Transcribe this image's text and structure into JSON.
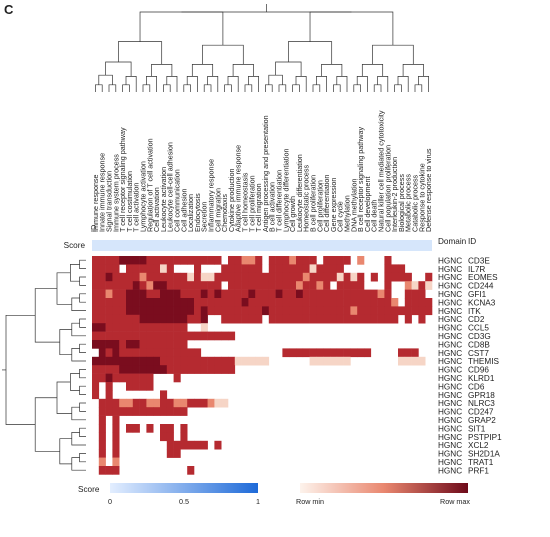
{
  "panel_label": "C",
  "chart_data": {
    "type": "heatmap",
    "id_column_header": "ID",
    "score_row_label": "Score",
    "domain_header": "Domain",
    "row_id_header": "ID",
    "domain_value": "HGNC",
    "columns": [
      "Immune response",
      "Innate immune response",
      "Signal transduction",
      "Immune system process",
      "T cell receptor signaling pathway",
      "T cell costimulation",
      "T cell activation",
      "Lymphocyte activation",
      "Regulation of T cell activation",
      "Cell activation",
      "Leukocyte activation",
      "Leukocyte cell-cell adhesion",
      "Cell communication",
      "Cell adhesion",
      "Localization",
      "Endocytosis",
      "Secretion",
      "Inflammatory response",
      "Cell migration",
      "Chemotaxis",
      "Cytokine production",
      "Adaptive immune response",
      "T cell homeostasis",
      "T cell proliferation",
      "T cell migration",
      "Antigen processing and presentation",
      "B cell activation",
      "T cell differentiation",
      "Lymphocyte differentiation",
      "Cell growth",
      "Leukocyte differentiation",
      "Homeostatic process",
      "B cell proliferation",
      "Cell proliferation",
      "Cell differentiation",
      "Gene expression",
      "Cell cycle",
      "Methylation",
      "DNA methylation",
      "B cell receptor signaling pathway",
      "Cell development",
      "Cell death",
      "Natural killer cell mediated cytotoxicity",
      "Cell population proliferation",
      "Interleukin-2 production",
      "Biological process",
      "Metabolic process",
      "Catabolic process",
      "Response to cytokine",
      "Defense response to virus"
    ],
    "rows": [
      "CD3E",
      "IL7R",
      "EOMES",
      "CD244",
      "GFI1",
      "KCNA3",
      "ITK",
      "CD2",
      "CCL5",
      "CD3G",
      "CD8B",
      "CST7",
      "THEMIS",
      "CD96",
      "KLRD1",
      "CD6",
      "GPR18",
      "NLRC3",
      "CD247",
      "GRAP2",
      "SIT1",
      "PSTPIP1",
      "XCL2",
      "SH2D1A",
      "TRAT1",
      "PRF1"
    ],
    "scale_min": 0,
    "scale_max": 4,
    "score_legend": {
      "title": "Score",
      "ticks": [
        "0",
        "0.5",
        "1"
      ],
      "color_low": "#e3eeff",
      "color_high": "#1e6ad8"
    },
    "row_legend": {
      "min_label": "Row min",
      "max_label": "Row max",
      "color_low": "#fdf3ec",
      "color_high": "#6e0a1a"
    },
    "row_dendrogram": true,
    "column_dendrogram": true,
    "values": [
      [
        3,
        3,
        3,
        3,
        4,
        4,
        4,
        4,
        3,
        3,
        3,
        3,
        3,
        3,
        3,
        3,
        3,
        3,
        3,
        0,
        3,
        3,
        2,
        2,
        3,
        0,
        3,
        3,
        3,
        2,
        3,
        3,
        3,
        0,
        3,
        3,
        3,
        3,
        0,
        2,
        0,
        0,
        0,
        3,
        0,
        0,
        0,
        0,
        0,
        0
      ],
      [
        3,
        3,
        3,
        3,
        0,
        3,
        3,
        3,
        3,
        3,
        1,
        3,
        0,
        0,
        0,
        3,
        0,
        0,
        0,
        3,
        3,
        3,
        3,
        3,
        3,
        0,
        3,
        3,
        3,
        3,
        3,
        3,
        1,
        3,
        3,
        3,
        3,
        0,
        0,
        0,
        0,
        0,
        0,
        3,
        3,
        3,
        0,
        0,
        0,
        0
      ],
      [
        3,
        3,
        4,
        3,
        3,
        3,
        3,
        2,
        3,
        3,
        3,
        3,
        3,
        3,
        1,
        3,
        1,
        1,
        3,
        3,
        3,
        3,
        3,
        3,
        3,
        3,
        3,
        3,
        3,
        3,
        3,
        2,
        3,
        3,
        3,
        3,
        1,
        3,
        1,
        3,
        0,
        3,
        0,
        3,
        3,
        3,
        3,
        0,
        0,
        3
      ],
      [
        3,
        3,
        3,
        3,
        3,
        3,
        4,
        3,
        2,
        4,
        4,
        3,
        3,
        3,
        3,
        3,
        3,
        3,
        3,
        0,
        3,
        3,
        3,
        3,
        3,
        3,
        3,
        3,
        3,
        3,
        2,
        3,
        3,
        2,
        3,
        0,
        3,
        3,
        3,
        3,
        0,
        0,
        0,
        3,
        0,
        0,
        2,
        1,
        3,
        1
      ],
      [
        3,
        3,
        2,
        3,
        3,
        4,
        4,
        4,
        3,
        3,
        4,
        4,
        4,
        3,
        3,
        3,
        4,
        3,
        4,
        3,
        3,
        3,
        3,
        4,
        3,
        3,
        3,
        4,
        3,
        3,
        4,
        3,
        3,
        3,
        3,
        3,
        3,
        3,
        3,
        3,
        3,
        3,
        2,
        3,
        0,
        0,
        3,
        3,
        3,
        0
      ],
      [
        3,
        3,
        3,
        3,
        3,
        4,
        4,
        4,
        4,
        4,
        4,
        4,
        4,
        4,
        4,
        3,
        3,
        3,
        3,
        3,
        3,
        3,
        4,
        3,
        3,
        3,
        3,
        3,
        3,
        3,
        3,
        3,
        3,
        3,
        3,
        3,
        3,
        3,
        3,
        3,
        3,
        3,
        3,
        3,
        2,
        0,
        3,
        3,
        3,
        3
      ],
      [
        3,
        3,
        3,
        3,
        3,
        4,
        4,
        4,
        4,
        4,
        4,
        4,
        4,
        4,
        4,
        3,
        4,
        3,
        3,
        3,
        3,
        3,
        3,
        3,
        3,
        4,
        3,
        3,
        3,
        3,
        3,
        3,
        3,
        3,
        3,
        3,
        3,
        3,
        2,
        3,
        3,
        3,
        3,
        3,
        3,
        3,
        3,
        3,
        3,
        3
      ],
      [
        3,
        3,
        3,
        3,
        3,
        3,
        3,
        4,
        4,
        4,
        4,
        4,
        4,
        4,
        3,
        3,
        4,
        0,
        0,
        3,
        3,
        3,
        3,
        3,
        3,
        0,
        3,
        3,
        3,
        3,
        3,
        3,
        3,
        3,
        3,
        3,
        3,
        3,
        3,
        3,
        3,
        3,
        3,
        3,
        3,
        0,
        3,
        0,
        3,
        0
      ],
      [
        4,
        4,
        3,
        3,
        3,
        3,
        3,
        3,
        3,
        3,
        3,
        3,
        3,
        3,
        0,
        0,
        1,
        0,
        0,
        0,
        0,
        0,
        0,
        0,
        0,
        0,
        0,
        0,
        0,
        0,
        0,
        0,
        0,
        0,
        0,
        0,
        0,
        0,
        0,
        0,
        0,
        0,
        0,
        0,
        0,
        0,
        0,
        0,
        0,
        0
      ],
      [
        3,
        3,
        3,
        3,
        3,
        3,
        3,
        3,
        3,
        3,
        3,
        3,
        3,
        3,
        3,
        3,
        3,
        3,
        3,
        3,
        3,
        0,
        0,
        0,
        0,
        0,
        0,
        0,
        0,
        0,
        0,
        0,
        0,
        0,
        0,
        0,
        0,
        0,
        0,
        0,
        0,
        0,
        0,
        0,
        0,
        0,
        0,
        0,
        0,
        0
      ],
      [
        4,
        4,
        4,
        4,
        3,
        4,
        4,
        3,
        3,
        3,
        3,
        3,
        3,
        3,
        0,
        0,
        0,
        0,
        0,
        0,
        0,
        0,
        0,
        0,
        0,
        0,
        0,
        0,
        0,
        0,
        0,
        0,
        0,
        0,
        0,
        0,
        0,
        0,
        0,
        0,
        0,
        0,
        0,
        0,
        0,
        0,
        0,
        0,
        0,
        0
      ],
      [
        0,
        4,
        3,
        4,
        3,
        3,
        3,
        3,
        3,
        3,
        3,
        3,
        3,
        3,
        3,
        3,
        0,
        0,
        0,
        0,
        0,
        0,
        0,
        0,
        0,
        0,
        0,
        0,
        3,
        3,
        3,
        3,
        3,
        3,
        3,
        3,
        3,
        3,
        3,
        3,
        3,
        0,
        0,
        0,
        0,
        3,
        3,
        3,
        0,
        0
      ],
      [
        4,
        4,
        4,
        4,
        4,
        4,
        4,
        4,
        4,
        4,
        3,
        3,
        3,
        3,
        3,
        3,
        3,
        3,
        3,
        3,
        3,
        1,
        1,
        1,
        1,
        1,
        0,
        0,
        0,
        0,
        0,
        0,
        1,
        1,
        1,
        1,
        1,
        1,
        0,
        0,
        0,
        0,
        0,
        0,
        0,
        1,
        1,
        1,
        1,
        0
      ],
      [
        3,
        3,
        3,
        3,
        4,
        4,
        4,
        4,
        4,
        4,
        4,
        3,
        3,
        3,
        3,
        3,
        3,
        3,
        3,
        3,
        3,
        0,
        0,
        0,
        0,
        0,
        0,
        0,
        0,
        0,
        0,
        0,
        0,
        0,
        0,
        0,
        0,
        0,
        0,
        0,
        0,
        0,
        0,
        0,
        0,
        0,
        0,
        0,
        0,
        0
      ],
      [
        3,
        3,
        4,
        3,
        3,
        3,
        3,
        3,
        3,
        0,
        0,
        0,
        3,
        0,
        0,
        0,
        0,
        0,
        0,
        0,
        0,
        0,
        0,
        0,
        0,
        0,
        0,
        0,
        0,
        0,
        0,
        0,
        0,
        0,
        0,
        0,
        0,
        0,
        0,
        0,
        0,
        0,
        0,
        0,
        0,
        0,
        0,
        0,
        0,
        0
      ],
      [
        3,
        0,
        3,
        0,
        0,
        3,
        3,
        3,
        3,
        0,
        0,
        0,
        0,
        0,
        0,
        0,
        0,
        0,
        0,
        0,
        0,
        0,
        0,
        0,
        0,
        0,
        0,
        0,
        0,
        0,
        0,
        0,
        0,
        0,
        0,
        0,
        0,
        0,
        0,
        0,
        0,
        0,
        0,
        0,
        0,
        0,
        0,
        0,
        0,
        0
      ],
      [
        3,
        0,
        3,
        0,
        0,
        0,
        0,
        0,
        0,
        0,
        3,
        0,
        0,
        0,
        0,
        0,
        0,
        0,
        0,
        0,
        0,
        0,
        0,
        0,
        0,
        0,
        0,
        0,
        0,
        0,
        0,
        0,
        0,
        0,
        0,
        0,
        0,
        0,
        0,
        0,
        0,
        0,
        0,
        0,
        0,
        0,
        0,
        0,
        0,
        0
      ],
      [
        0,
        3,
        3,
        3,
        2,
        2,
        3,
        3,
        2,
        2,
        3,
        3,
        2,
        2,
        3,
        3,
        3,
        2,
        1,
        1,
        0,
        0,
        0,
        0,
        0,
        0,
        0,
        0,
        0,
        0,
        0,
        0,
        0,
        0,
        0,
        0,
        0,
        0,
        0,
        0,
        0,
        0,
        0,
        0,
        0,
        0,
        0,
        0,
        0,
        0
      ],
      [
        0,
        3,
        3,
        3,
        3,
        3,
        3,
        3,
        3,
        3,
        3,
        3,
        3,
        3,
        0,
        0,
        0,
        0,
        0,
        0,
        0,
        0,
        0,
        0,
        0,
        0,
        0,
        0,
        0,
        0,
        0,
        0,
        0,
        0,
        0,
        0,
        0,
        0,
        0,
        0,
        0,
        0,
        0,
        0,
        0,
        0,
        0,
        0,
        0,
        0
      ],
      [
        0,
        3,
        0,
        3,
        0,
        0,
        0,
        0,
        0,
        0,
        0,
        0,
        0,
        0,
        0,
        0,
        0,
        0,
        0,
        0,
        0,
        0,
        0,
        0,
        0,
        0,
        0,
        0,
        0,
        0,
        0,
        0,
        0,
        0,
        0,
        0,
        0,
        0,
        0,
        0,
        0,
        0,
        0,
        0,
        0,
        0,
        0,
        0,
        0,
        0
      ],
      [
        0,
        3,
        0,
        3,
        0,
        3,
        3,
        0,
        3,
        0,
        3,
        3,
        0,
        3,
        0,
        0,
        0,
        0,
        0,
        0,
        0,
        0,
        0,
        0,
        0,
        0,
        0,
        0,
        0,
        0,
        0,
        0,
        0,
        0,
        0,
        0,
        0,
        0,
        0,
        0,
        0,
        0,
        0,
        0,
        0,
        0,
        0,
        0,
        0,
        0
      ],
      [
        0,
        3,
        0,
        3,
        0,
        0,
        0,
        0,
        0,
        0,
        3,
        3,
        0,
        3,
        0,
        0,
        0,
        0,
        0,
        0,
        0,
        0,
        0,
        0,
        0,
        0,
        0,
        0,
        0,
        0,
        0,
        0,
        0,
        0,
        0,
        0,
        0,
        0,
        0,
        0,
        0,
        0,
        0,
        0,
        0,
        0,
        0,
        0,
        0,
        0
      ],
      [
        0,
        3,
        0,
        3,
        0,
        0,
        0,
        0,
        0,
        0,
        0,
        3,
        3,
        3,
        3,
        3,
        3,
        0,
        3,
        0,
        0,
        0,
        0,
        0,
        0,
        0,
        0,
        0,
        0,
        0,
        0,
        0,
        0,
        0,
        0,
        0,
        0,
        0,
        0,
        0,
        0,
        0,
        0,
        0,
        0,
        0,
        0,
        0,
        0,
        0
      ],
      [
        0,
        3,
        0,
        3,
        0,
        0,
        0,
        0,
        0,
        0,
        0,
        3,
        3,
        0,
        0,
        0,
        0,
        0,
        0,
        0,
        0,
        0,
        0,
        0,
        0,
        0,
        0,
        0,
        0,
        0,
        0,
        0,
        0,
        0,
        0,
        0,
        0,
        0,
        0,
        0,
        0,
        0,
        0,
        0,
        0,
        0,
        0,
        0,
        0,
        0
      ],
      [
        0,
        2,
        0,
        2,
        0,
        0,
        0,
        0,
        0,
        0,
        0,
        0,
        0,
        0,
        0,
        0,
        0,
        0,
        0,
        0,
        0,
        0,
        0,
        0,
        0,
        0,
        0,
        0,
        0,
        0,
        0,
        0,
        0,
        0,
        0,
        0,
        0,
        0,
        0,
        0,
        0,
        0,
        0,
        0,
        0,
        0,
        0,
        0,
        0,
        0
      ],
      [
        0,
        3,
        3,
        3,
        0,
        0,
        0,
        0,
        0,
        0,
        0,
        0,
        0,
        0,
        3,
        0,
        0,
        0,
        0,
        0,
        0,
        0,
        0,
        0,
        0,
        0,
        0,
        0,
        0,
        0,
        0,
        0,
        0,
        0,
        0,
        0,
        0,
        0,
        0,
        0,
        0,
        0,
        0,
        0,
        0,
        0,
        0,
        0,
        0,
        0
      ]
    ]
  }
}
